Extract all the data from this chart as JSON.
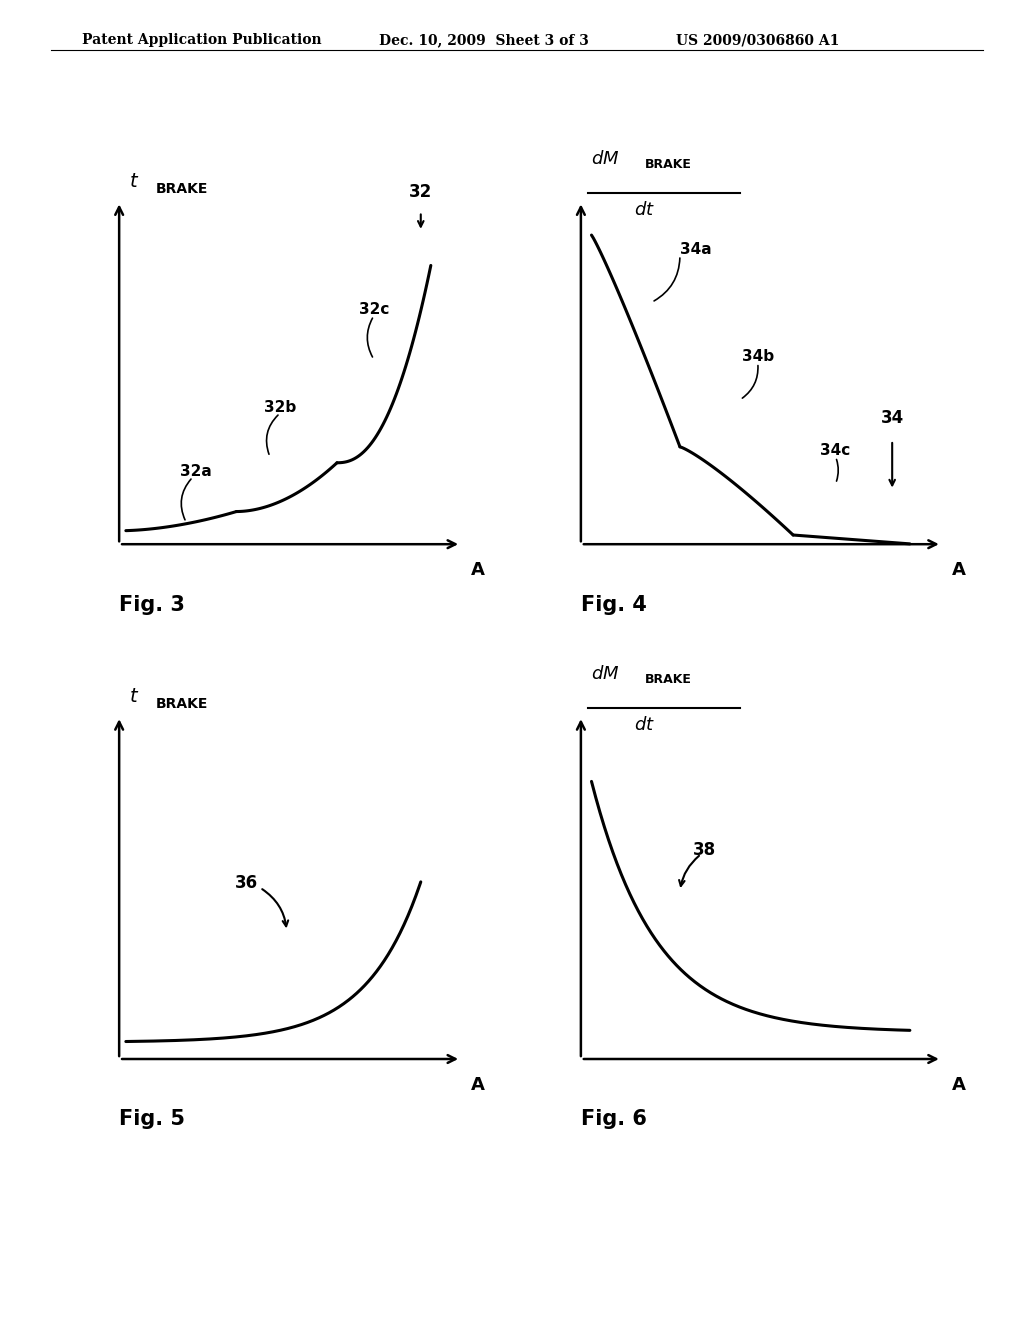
{
  "header_left": "Patent Application Publication",
  "header_mid": "Dec. 10, 2009  Sheet 3 of 3",
  "header_right": "US 2009/0306860 A1",
  "bg_color": "#ffffff",
  "text_color": "#000000",
  "linewidth": 2.2,
  "fig3_label": "Fig. 3",
  "fig4_label": "Fig. 4",
  "fig5_label": "Fig. 5",
  "fig6_label": "Fig. 6"
}
